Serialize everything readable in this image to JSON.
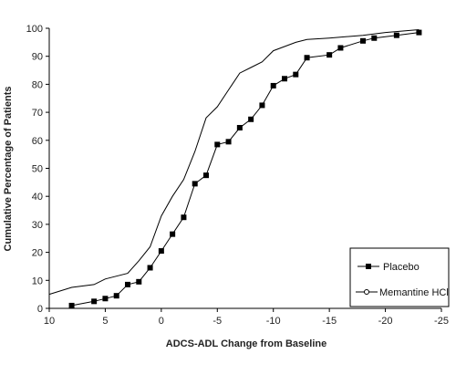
{
  "chart_data": {
    "type": "line",
    "title": "",
    "xlabel": "ADCS-ADL Change from Baseline",
    "ylabel": "Cumulative Percentage of Patients",
    "xlim": [
      10,
      -25
    ],
    "ylim": [
      0,
      100
    ],
    "x_reversed": true,
    "x_ticks": [
      10,
      5,
      0,
      -5,
      -10,
      -15,
      -20,
      -25
    ],
    "y_ticks": [
      0,
      10,
      20,
      30,
      40,
      50,
      60,
      70,
      80,
      90,
      100
    ],
    "grid": false,
    "legend_position": "bottom-right",
    "series": [
      {
        "name": "Placebo",
        "marker": "square",
        "x": [
          8,
          6,
          5,
          4,
          3,
          2,
          1,
          0,
          -1,
          -2,
          -3,
          -4,
          -5,
          -6,
          -7,
          -8,
          -9,
          -10,
          -11,
          -12,
          -13,
          -15,
          -16,
          -18,
          -19,
          -21,
          -23
        ],
        "y": [
          1,
          2.5,
          3.5,
          4.5,
          8.5,
          9.5,
          14.5,
          20.5,
          26.5,
          32.5,
          44.5,
          47.5,
          58.5,
          59.5,
          64.5,
          67.5,
          72.5,
          79.5,
          82,
          83.5,
          89.5,
          90.5,
          93,
          95.5,
          96.5,
          97.5,
          98.5
        ]
      },
      {
        "name": "Memantine HCl",
        "marker": "none",
        "x": [
          10,
          8,
          6,
          5,
          4,
          3,
          2,
          1,
          0,
          -1,
          -2,
          -3,
          -4,
          -5,
          -6,
          -7,
          -8,
          -9,
          -10,
          -11,
          -12,
          -13,
          -15,
          -18,
          -20,
          -23
        ],
        "y": [
          5,
          7.5,
          8.5,
          10.5,
          11.5,
          12.5,
          17,
          22,
          33,
          40,
          46,
          56,
          68,
          72,
          78,
          84,
          86,
          88,
          92,
          93.5,
          95,
          96,
          96.5,
          97.5,
          98.5,
          99.5
        ]
      }
    ]
  }
}
